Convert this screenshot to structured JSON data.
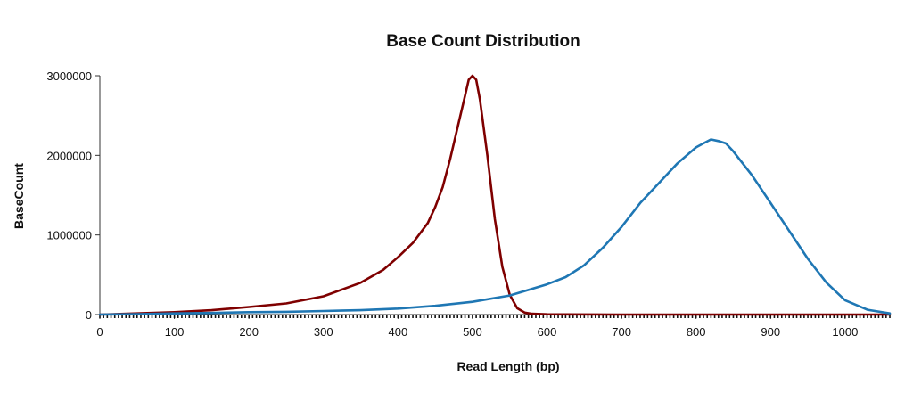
{
  "chart_data": {
    "type": "line",
    "title": "Base Count Distribution",
    "xlabel": "Read Length (bp)",
    "ylabel": "BaseCount",
    "xlim": [
      0,
      1060
    ],
    "ylim": [
      0,
      3000000
    ],
    "x_ticks": [
      0,
      100,
      200,
      300,
      400,
      500,
      600,
      700,
      800,
      900,
      1000
    ],
    "y_ticks": [
      0,
      1000000,
      2000000,
      3000000
    ],
    "grid": false,
    "legend": "none",
    "series": [
      {
        "color": "#7f0000",
        "x": [
          0,
          50,
          100,
          150,
          200,
          250,
          300,
          350,
          380,
          400,
          420,
          440,
          450,
          460,
          470,
          480,
          490,
          495,
          500,
          505,
          510,
          520,
          530,
          540,
          550,
          560,
          570,
          580,
          600,
          700,
          800,
          900,
          1000,
          1060
        ],
        "y": [
          0,
          15000,
          30000,
          55000,
          95000,
          140000,
          230000,
          400000,
          560000,
          720000,
          900000,
          1150000,
          1350000,
          1600000,
          1950000,
          2350000,
          2750000,
          2950000,
          3000000,
          2950000,
          2700000,
          2000000,
          1200000,
          600000,
          250000,
          80000,
          25000,
          10000,
          3000,
          0,
          0,
          0,
          0,
          0
        ]
      },
      {
        "color": "#1f77b4",
        "x": [
          0,
          50,
          100,
          150,
          200,
          250,
          300,
          350,
          400,
          450,
          500,
          550,
          600,
          625,
          650,
          675,
          700,
          725,
          750,
          775,
          800,
          810,
          820,
          830,
          840,
          850,
          875,
          900,
          925,
          950,
          975,
          1000,
          1030,
          1060
        ],
        "y": [
          0,
          5000,
          15000,
          20000,
          30000,
          35000,
          45000,
          55000,
          75000,
          110000,
          160000,
          240000,
          380000,
          470000,
          620000,
          840000,
          1100000,
          1400000,
          1650000,
          1900000,
          2100000,
          2150000,
          2200000,
          2180000,
          2150000,
          2050000,
          1750000,
          1400000,
          1050000,
          700000,
          400000,
          180000,
          60000,
          15000
        ]
      }
    ]
  }
}
